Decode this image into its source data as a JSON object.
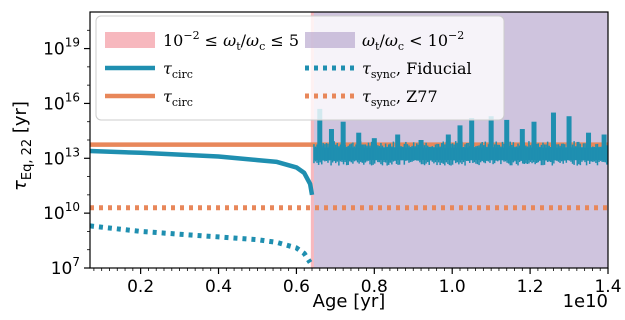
{
  "chart_data": {
    "type": "line",
    "xlabel": "Age [yr]",
    "ylabel": "τ_Eq, 22 [yr]",
    "x_offset_label": "1e10",
    "xlim": [
      0.07,
      1.4
    ],
    "x_scale_note": "x in units of 1e10 yr",
    "ylim_log10": [
      7,
      21
    ],
    "y_scale": "log",
    "x_ticks": [
      "0.2",
      "0.4",
      "0.6",
      "0.8",
      "1.0",
      "1.2",
      "1.4"
    ],
    "y_ticks": [
      {
        "base": "10",
        "exp": "7",
        "log": 7
      },
      {
        "base": "10",
        "exp": "10",
        "log": 10
      },
      {
        "base": "10",
        "exp": "13",
        "log": 13
      },
      {
        "base": "10",
        "exp": "16",
        "log": 16
      },
      {
        "base": "10",
        "exp": "19",
        "log": 19
      }
    ],
    "regions": [
      {
        "name": "10^-2 ≤ ω_t/ω_c ≤ 5",
        "x_start": 0.637,
        "x_end": 0.645,
        "color": "#f4a0a8"
      },
      {
        "name": "ω_t/ω_c < 10^-2",
        "x_start": 0.645,
        "x_end": 1.4,
        "color": "#b5a5cc"
      }
    ],
    "series": [
      {
        "name": "τ_circ",
        "style": "solid",
        "color": "#1f8fb0",
        "note": "before transition",
        "x": [
          0.07,
          0.2,
          0.3,
          0.4,
          0.5,
          0.55,
          0.6,
          0.62,
          0.635,
          0.64
        ],
        "log10_y": [
          13.4,
          13.3,
          13.2,
          13.1,
          12.9,
          12.8,
          12.5,
          12.2,
          11.6,
          11.0
        ]
      },
      {
        "name": "τ_circ",
        "style": "solid",
        "color": "#e8875a",
        "x": [
          0.07,
          1.4
        ],
        "log10_y": [
          13.75,
          13.75
        ]
      },
      {
        "name": "τ_sync, Fiducial",
        "style": "dotted",
        "color": "#1f8fb0",
        "x": [
          0.07,
          0.2,
          0.3,
          0.4,
          0.5,
          0.55,
          0.6,
          0.62,
          0.635
        ],
        "log10_y": [
          9.3,
          9.0,
          8.85,
          8.7,
          8.55,
          8.4,
          8.1,
          7.8,
          7.3
        ]
      },
      {
        "name": "τ_sync, Z77",
        "style": "dotted",
        "color": "#e8875a",
        "x": [
          0.07,
          1.4
        ],
        "log10_y": [
          10.3,
          10.3
        ]
      }
    ],
    "noisy_band": {
      "color": "#1f8fb0",
      "x_start": 0.645,
      "x_end": 1.4,
      "log10_low": 12.9,
      "log10_high": 13.6,
      "spikes": [
        {
          "x": 0.66,
          "log10_y": 15.7
        },
        {
          "x": 0.69,
          "log10_y": 14.6
        },
        {
          "x": 0.72,
          "log10_y": 15.0
        },
        {
          "x": 0.76,
          "log10_y": 14.4
        },
        {
          "x": 0.8,
          "log10_y": 14.1
        },
        {
          "x": 0.86,
          "log10_y": 14.3
        },
        {
          "x": 0.92,
          "log10_y": 14.0
        },
        {
          "x": 0.99,
          "log10_y": 14.3
        },
        {
          "x": 1.02,
          "log10_y": 14.8
        },
        {
          "x": 1.05,
          "log10_y": 15.2
        },
        {
          "x": 1.1,
          "log10_y": 15.3
        },
        {
          "x": 1.14,
          "log10_y": 15.1
        },
        {
          "x": 1.18,
          "log10_y": 14.6
        },
        {
          "x": 1.21,
          "log10_y": 15.0
        },
        {
          "x": 1.26,
          "log10_y": 15.5
        },
        {
          "x": 1.3,
          "log10_y": 15.3
        },
        {
          "x": 1.35,
          "log10_y": 14.4
        },
        {
          "x": 1.39,
          "log10_y": 14.3
        }
      ]
    },
    "legend": {
      "placement": "top",
      "entries": [
        {
          "kind": "patch",
          "color": "#f4a0a8",
          "label_parts": [
            "10",
            "−2",
            " ≤ ",
            "ω",
            "t",
            "/",
            "ω",
            "c",
            " ≤ 5"
          ]
        },
        {
          "kind": "patch",
          "color": "#b5a5cc",
          "label_parts": [
            "ω",
            "t",
            "/",
            "ω",
            "c",
            " < 10",
            "−2"
          ]
        },
        {
          "kind": "line",
          "color": "#1f8fb0",
          "label_parts": [
            "τ",
            "circ"
          ]
        },
        {
          "kind": "dotted",
          "color": "#1f8fb0",
          "label_parts": [
            "τ",
            "sync",
            ", Fiducial"
          ]
        },
        {
          "kind": "line",
          "color": "#e8875a",
          "label_parts": [
            "τ",
            "circ"
          ]
        },
        {
          "kind": "dotted",
          "color": "#e8875a",
          "label_parts": [
            "τ",
            "sync",
            ", Z77"
          ]
        }
      ]
    }
  }
}
